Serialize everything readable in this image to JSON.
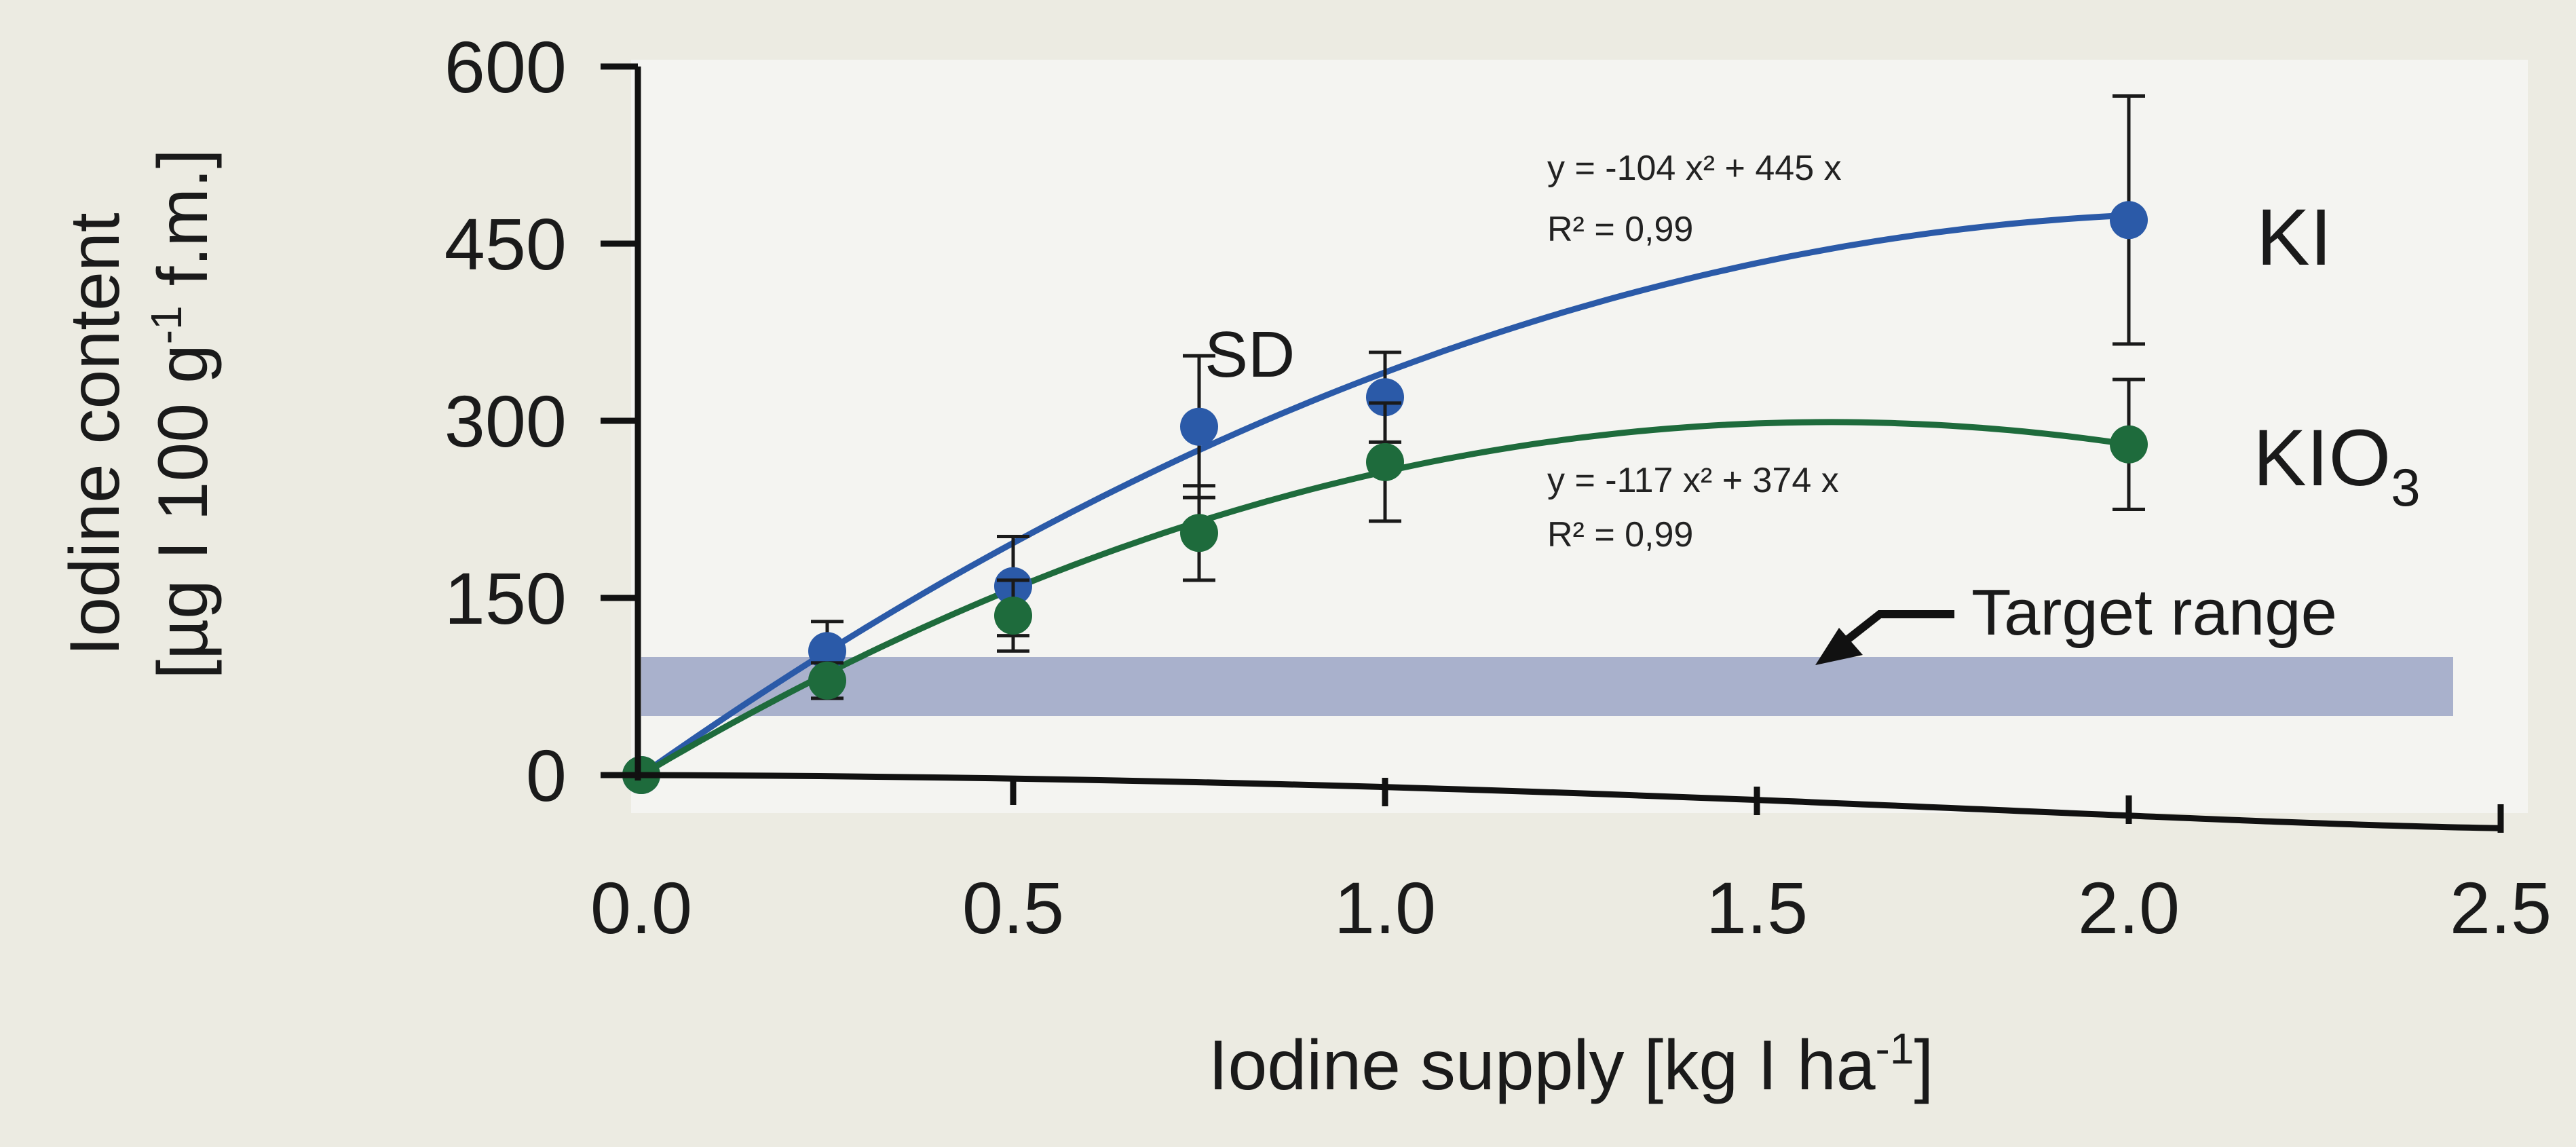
{
  "chart_data": {
    "type": "scatter",
    "xlabel": "Iodine supply [kg I ha-1]",
    "ylabel": "Iodine content [µg I 100 g-1 f.m.]",
    "xlim": [
      0,
      2.5
    ],
    "ylim": [
      0,
      600
    ],
    "x_ticks": [
      "0.0",
      "0.5",
      "1.0",
      "1.5",
      "2.0",
      "2.5"
    ],
    "y_ticks": [
      "0",
      "150",
      "300",
      "450",
      "600"
    ],
    "grid": false,
    "series": [
      {
        "name": "KI",
        "color": "#2b5aa8",
        "x": [
          0,
          0.25,
          0.5,
          0.75,
          1.0,
          2.0
        ],
        "y": [
          0,
          105,
          160,
          295,
          320,
          470
        ],
        "sd": [
          0,
          25,
          42,
          60,
          38,
          105
        ],
        "fit": {
          "a": -104,
          "b": 445
        },
        "equation": "y = -104 x² + 445 x",
        "r2": "R² = 0,99"
      },
      {
        "name": "KIO3",
        "color": "#1e6b3c",
        "x": [
          0,
          0.25,
          0.5,
          0.75,
          1.0,
          2.0
        ],
        "y": [
          0,
          80,
          135,
          205,
          265,
          280
        ],
        "sd": [
          0,
          15,
          30,
          40,
          50,
          55
        ],
        "fit": {
          "a": -117,
          "b": 374
        },
        "equation": "y = -117 x² + 374 x",
        "r2": "R² = 0,99"
      }
    ],
    "target_range": {
      "label": "Target range",
      "y": [
        50,
        100
      ],
      "color": "#a9b1cc"
    },
    "annotations": [
      {
        "text": "SD"
      }
    ]
  }
}
